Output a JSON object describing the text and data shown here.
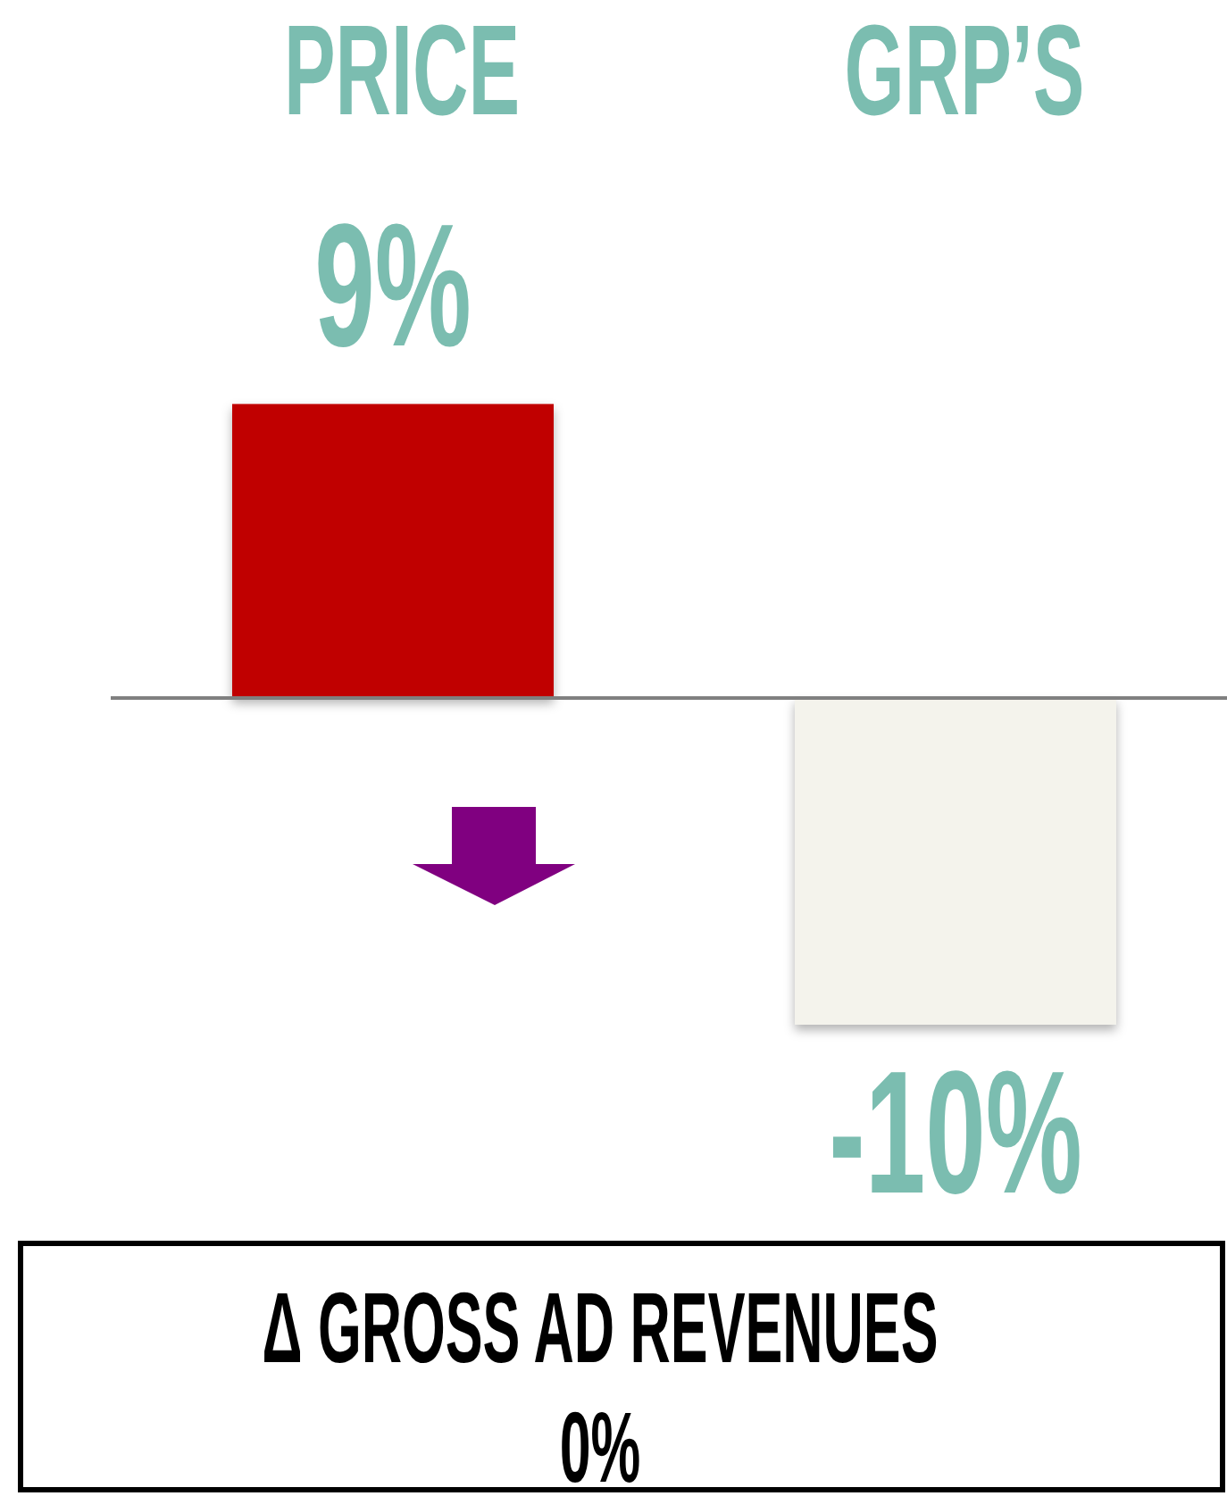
{
  "chart_data": {
    "type": "bar",
    "categories": [
      "PRICE",
      "GRP’S"
    ],
    "values": [
      9,
      -10
    ],
    "colors": [
      "#c00000",
      "#f4f3ec"
    ],
    "value_labels": [
      "9%",
      "-10%"
    ],
    "annotations": [
      "Δ GROSS AD REVENUES",
      "0%"
    ]
  }
}
